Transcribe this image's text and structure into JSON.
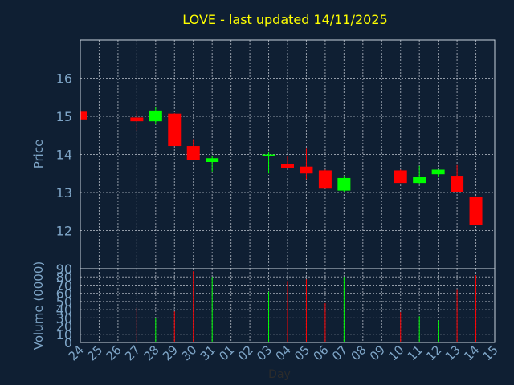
{
  "chart_data": {
    "type": "candlestick",
    "title": "LOVE - last updated 14/11/2025",
    "xlabel": "Day",
    "price_axis": {
      "label": "Price",
      "ylim": [
        11,
        17
      ],
      "ticks": [
        12,
        13,
        14,
        15,
        16
      ]
    },
    "volume_axis": {
      "label": "Volume (0000)",
      "ylim": [
        0,
        90
      ],
      "ticks": [
        0,
        10,
        20,
        30,
        40,
        50,
        60,
        70,
        80,
        90
      ]
    },
    "x_ticks": [
      "24",
      "25",
      "26",
      "27",
      "28",
      "29",
      "30",
      "31",
      "01",
      "02",
      "03",
      "04",
      "05",
      "06",
      "07",
      "08",
      "09",
      "10",
      "11",
      "12",
      "13",
      "14",
      "15"
    ],
    "grid": true,
    "colors": {
      "up": "#00ff00",
      "down": "#ff0000",
      "background": "#0f1f33",
      "title": "#ffff00",
      "axis_text": "#7fa6c8"
    },
    "candles": [
      {
        "x": 0,
        "open": 15.12,
        "high": 15.12,
        "low": 14.92,
        "close": 14.92,
        "volume": 0
      },
      {
        "x": 3,
        "open": 14.97,
        "high": 15.15,
        "low": 14.62,
        "close": 14.87,
        "volume": 42
      },
      {
        "x": 4,
        "open": 14.87,
        "high": 15.25,
        "low": 14.8,
        "close": 15.15,
        "volume": 30
      },
      {
        "x": 5,
        "open": 15.07,
        "high": 15.08,
        "low": 14.22,
        "close": 14.22,
        "volume": 38
      },
      {
        "x": 6,
        "open": 14.22,
        "high": 14.4,
        "low": 13.85,
        "close": 13.85,
        "volume": 87
      },
      {
        "x": 7,
        "open": 13.8,
        "high": 13.95,
        "low": 13.55,
        "close": 13.9,
        "volume": 80
      },
      {
        "x": 10,
        "open": 13.95,
        "high": 14.05,
        "low": 13.5,
        "close": 14.0,
        "volume": 62
      },
      {
        "x": 11,
        "open": 13.75,
        "high": 13.95,
        "low": 13.65,
        "close": 13.65,
        "volume": 75
      },
      {
        "x": 12,
        "open": 13.68,
        "high": 14.15,
        "low": 13.35,
        "close": 13.5,
        "volume": 77
      },
      {
        "x": 13,
        "open": 13.58,
        "high": 13.6,
        "low": 13.1,
        "close": 13.1,
        "volume": 48
      },
      {
        "x": 14,
        "open": 13.05,
        "high": 13.42,
        "low": 13.0,
        "close": 13.38,
        "volume": 80
      },
      {
        "x": 17,
        "open": 13.58,
        "high": 13.6,
        "low": 13.25,
        "close": 13.25,
        "volume": 37
      },
      {
        "x": 18,
        "open": 13.25,
        "high": 13.7,
        "low": 13.22,
        "close": 13.4,
        "volume": 32
      },
      {
        "x": 19,
        "open": 13.48,
        "high": 13.6,
        "low": 13.4,
        "close": 13.6,
        "volume": 27
      },
      {
        "x": 20,
        "open": 13.42,
        "high": 13.72,
        "low": 13.02,
        "close": 13.02,
        "volume": 65
      },
      {
        "x": 21,
        "open": 12.88,
        "high": 12.9,
        "low": 12.15,
        "close": 12.15,
        "volume": 82
      }
    ]
  }
}
